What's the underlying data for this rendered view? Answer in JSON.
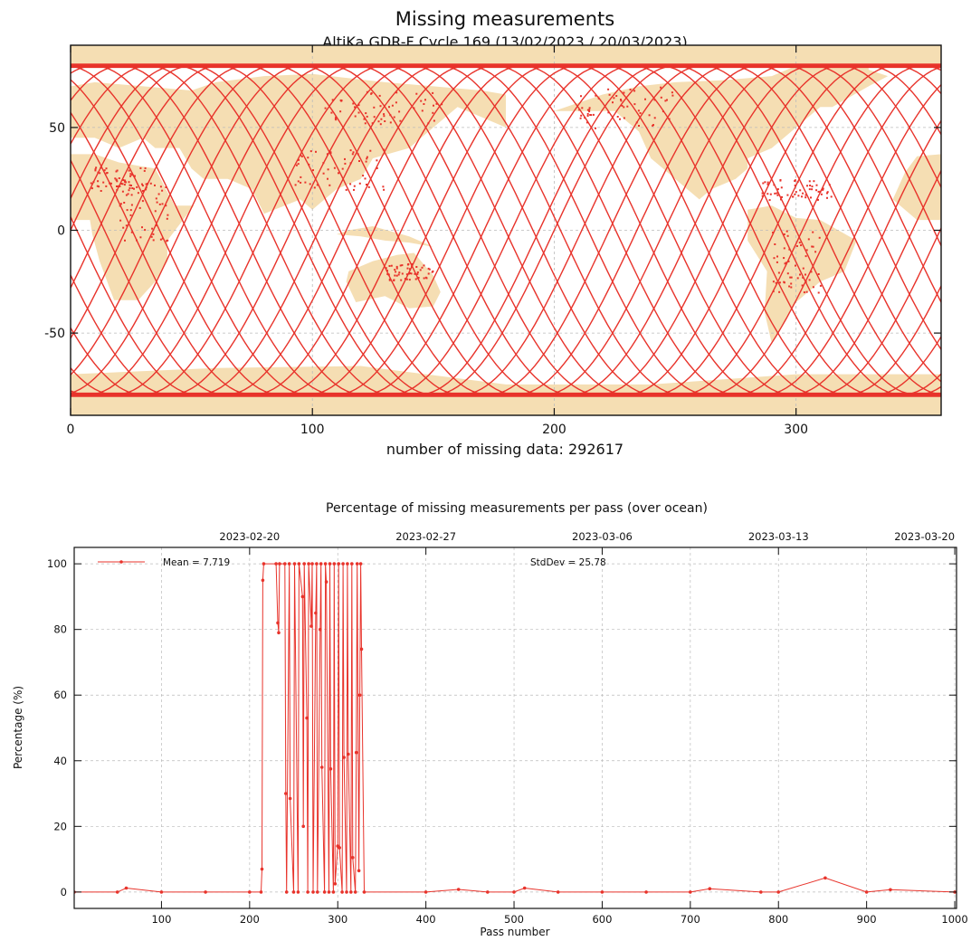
{
  "map_panel": {
    "title": "Missing measurements",
    "subtitle": "AltiKa GDR-F Cycle 169 (13/02/2023 / 20/03/2023)",
    "footer": "number of missing data: 292617",
    "colors": {
      "land": "#f5deb3",
      "track": "#e8332b",
      "ocean": "#ffffff"
    }
  },
  "chart_panel": {
    "title": "Percentage of missing measurements per pass (over ocean)",
    "legend": {
      "mean": "Mean = 7.719",
      "stddev": "StdDev = 25.78"
    },
    "colors": {
      "series": "#e8332b",
      "grid": "#bbbbbb"
    }
  },
  "chart_data": [
    {
      "type": "scatter",
      "title": "",
      "xlabel": "",
      "ylabel": "",
      "xlim": [
        0,
        360
      ],
      "ylim": [
        -90,
        90
      ],
      "x_ticks": [
        "0",
        "100",
        "200",
        "300"
      ],
      "y_ticks": [
        "-50",
        "0",
        "50"
      ],
      "grid": true,
      "series": [
        {
          "values": []
        }
      ]
    },
    {
      "type": "line",
      "title": "",
      "xlabel": "Pass number",
      "ylabel": "Percentage (%)",
      "xlim": [
        1,
        1002
      ],
      "ylim": [
        -5,
        105
      ],
      "x_ticks": [
        "100",
        "200",
        "300",
        "400",
        "500",
        "600",
        "700",
        "800",
        "900",
        "1000"
      ],
      "y_ticks": [
        "0",
        "20",
        "40",
        "60",
        "80",
        "100"
      ],
      "top_axis_dates": [
        "2023-02-20",
        "2023-02-27",
        "2023-03-06",
        "2023-03-13",
        "2023-03-20"
      ],
      "top_axis_passes": [
        200,
        400,
        600,
        800,
        1000
      ],
      "grid": true,
      "legend_position": "top-left",
      "series": [
        {
          "x": [
            1,
            50,
            60,
            100,
            150,
            200,
            213,
            214,
            215,
            216,
            230,
            232,
            233,
            234,
            240,
            241,
            242,
            245,
            246,
            250,
            251,
            255,
            256,
            260,
            261,
            262,
            265,
            266,
            267,
            270,
            271,
            272,
            275,
            276,
            277,
            280,
            281,
            282,
            285,
            286,
            287,
            290,
            291,
            292,
            295,
            296,
            297,
            300,
            301,
            302,
            305,
            306,
            307,
            310,
            311,
            312,
            315,
            316,
            317,
            320,
            321,
            322,
            324,
            325,
            326,
            327,
            330,
            400,
            437,
            470,
            500,
            512,
            550,
            600,
            650,
            700,
            722,
            780,
            800,
            853,
            900,
            927,
            1000
          ],
          "y": [
            0,
            0,
            1.2,
            0,
            0,
            0,
            0,
            7,
            95,
            100,
            100,
            82,
            79,
            100,
            100,
            30,
            0,
            100,
            28.5,
            0,
            100,
            0,
            100,
            90,
            20,
            100,
            53,
            0,
            100,
            81,
            100,
            0,
            85,
            100,
            0,
            80,
            100,
            38,
            0,
            100,
            94.5,
            0,
            100,
            37.5,
            0,
            100,
            2.5,
            14,
            100,
            13.5,
            0,
            100,
            41,
            0,
            100,
            42,
            0,
            100,
            10.5,
            0,
            42.5,
            100,
            6.5,
            60,
            100,
            74,
            0,
            0,
            0.8,
            0,
            0,
            1.2,
            0,
            0,
            0,
            0,
            1.0,
            0,
            0,
            4.3,
            0,
            0.7,
            0
          ]
        }
      ]
    }
  ]
}
